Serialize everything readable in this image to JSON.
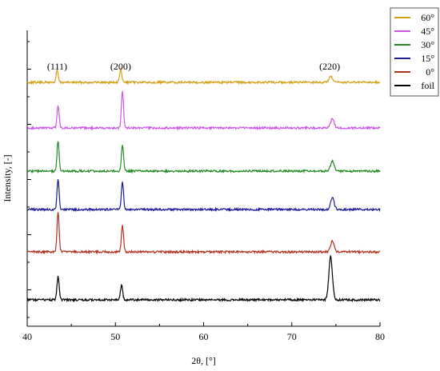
{
  "chart_data": {
    "type": "line",
    "xlabel": "2θ, [°]",
    "ylabel": "Intensity, [-]",
    "xlim": [
      40,
      80
    ],
    "xticks": [
      "40",
      "50",
      "60",
      "70",
      "80"
    ],
    "y_tick_labels": "none",
    "grid": false,
    "legend_placement": "top-right",
    "peak_labels": [
      {
        "text": "(111)",
        "x": 43.4
      },
      {
        "text": "(200)",
        "x": 50.6
      },
      {
        "text": "(220)",
        "x": 74.3
      }
    ],
    "series": [
      {
        "name": "60°",
        "color": "#d4a017",
        "baseline": 5,
        "peaks": [
          [
            43.4,
            0.9
          ],
          [
            50.6,
            1.0
          ],
          [
            74.4,
            0.45
          ]
        ]
      },
      {
        "name": "45°",
        "color": "#cc55e8",
        "baseline": 4,
        "peaks": [
          [
            43.5,
            1.7
          ],
          [
            50.8,
            2.8
          ],
          [
            74.6,
            0.7
          ]
        ]
      },
      {
        "name": "30°",
        "color": "#228b22",
        "baseline": 3,
        "peaks": [
          [
            43.5,
            2.3
          ],
          [
            50.8,
            2.0
          ],
          [
            74.6,
            0.75
          ]
        ]
      },
      {
        "name": "15°",
        "color": "#1a1a99",
        "baseline": 2,
        "peaks": [
          [
            43.5,
            2.3
          ],
          [
            50.8,
            2.1
          ],
          [
            74.6,
            0.9
          ]
        ]
      },
      {
        "name": "0°",
        "color": "#b5301c",
        "baseline": 1,
        "peaks": [
          [
            43.5,
            3.0
          ],
          [
            50.8,
            2.0
          ],
          [
            74.6,
            0.8
          ]
        ]
      },
      {
        "name": "foil",
        "color": "#000000",
        "baseline": 0,
        "peaks": [
          [
            43.5,
            1.8
          ],
          [
            50.7,
            1.1
          ],
          [
            74.4,
            3.3
          ]
        ]
      }
    ]
  }
}
